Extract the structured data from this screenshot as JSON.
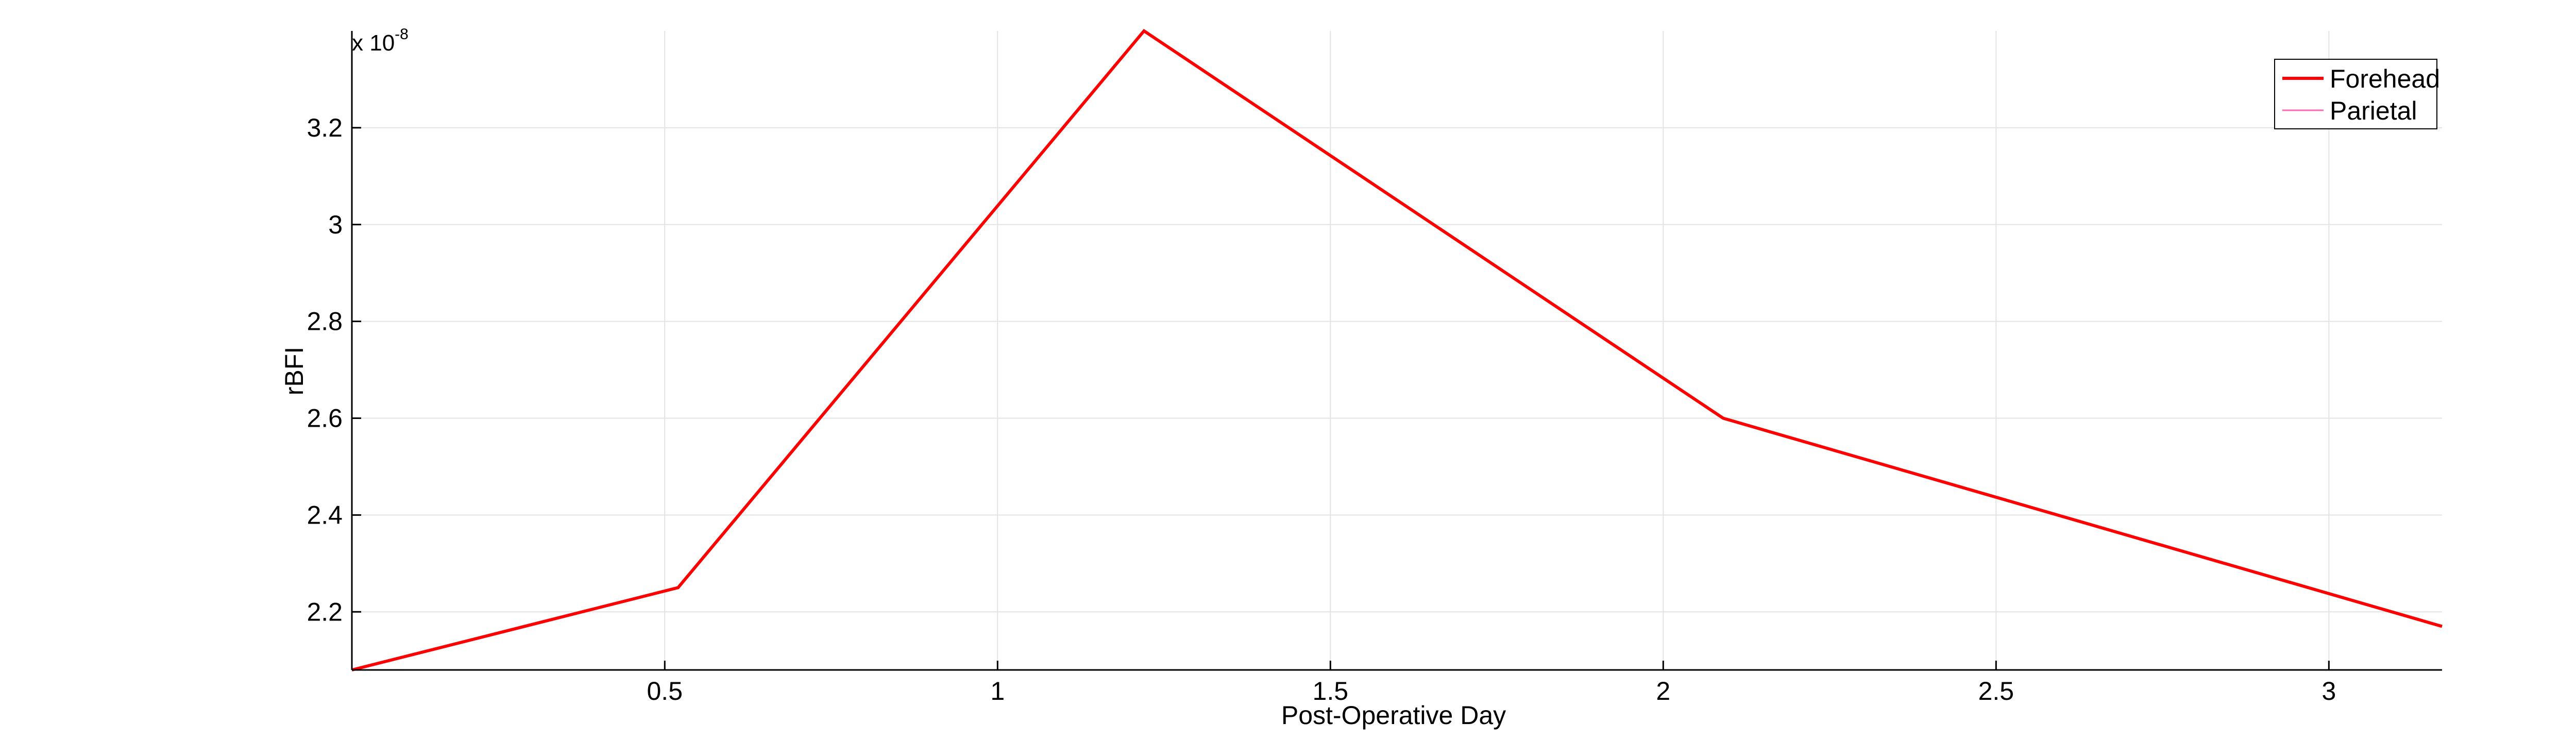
{
  "chart_data": {
    "type": "line",
    "title": "",
    "xlabel": "Post-Operative Day",
    "ylabel": "rBFI",
    "y_exponent_base": "x 10",
    "y_exponent_power": "-8",
    "xlim": [
      0.03,
      3.17
    ],
    "ylim": [
      2.08,
      3.4
    ],
    "xticks": [
      0.5,
      1,
      1.5,
      2,
      2.5,
      3
    ],
    "xtick_labels": [
      "0.5",
      "1",
      "1.5",
      "2",
      "2.5",
      "3"
    ],
    "yticks": [
      2.2,
      2.4,
      2.6,
      2.8,
      3.0,
      3.2
    ],
    "ytick_labels": [
      "2.2",
      "2.4",
      "2.6",
      "2.8",
      "3",
      "3.2"
    ],
    "grid": true,
    "legend_position": "top-right",
    "series": [
      {
        "name": "Forehead",
        "color": "#ff0000",
        "x": [
          0.03,
          0.52,
          1.22,
          2.09,
          3.17
        ],
        "y": [
          2.08,
          2.25,
          3.4,
          2.6,
          2.17
        ]
      },
      {
        "name": "Parietal",
        "color": "#ff69b4",
        "x": [],
        "y": []
      }
    ]
  }
}
